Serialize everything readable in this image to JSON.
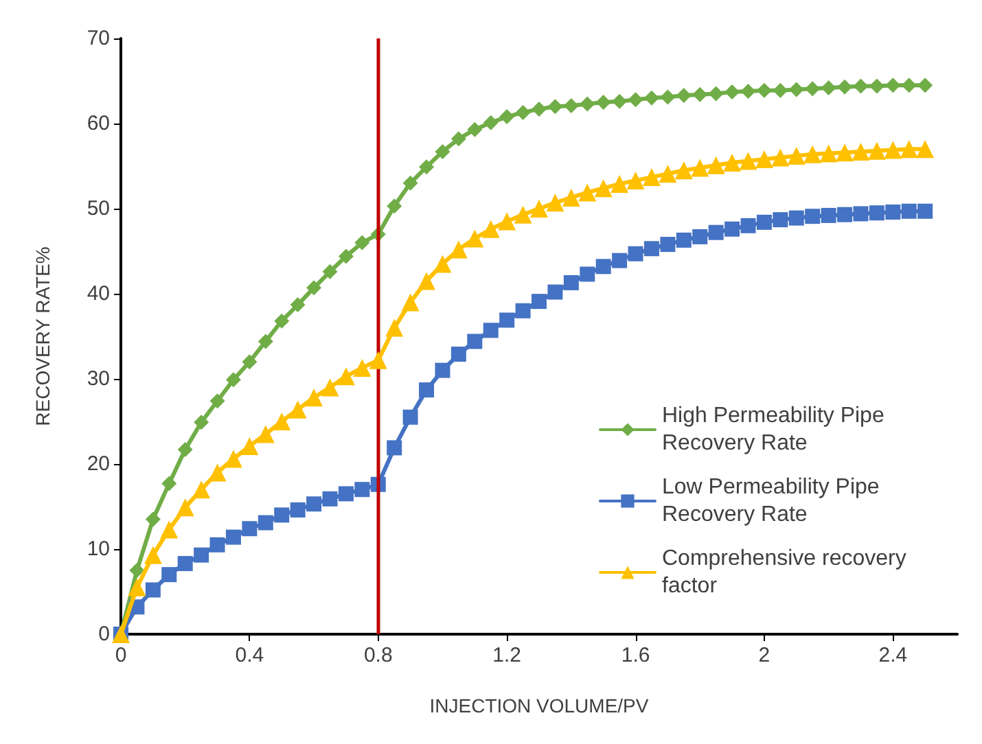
{
  "chart_data": {
    "type": "line",
    "xlabel": "INJECTION VOLUME/PV",
    "ylabel": "RECOVERY RATE%",
    "x": [
      0,
      0.05,
      0.1,
      0.15,
      0.2,
      0.25,
      0.3,
      0.35,
      0.4,
      0.45,
      0.5,
      0.55,
      0.6,
      0.65,
      0.7,
      0.75,
      0.8,
      0.85,
      0.9,
      0.95,
      1.0,
      1.05,
      1.1,
      1.15,
      1.2,
      1.25,
      1.3,
      1.35,
      1.4,
      1.45,
      1.5,
      1.55,
      1.6,
      1.65,
      1.7,
      1.75,
      1.8,
      1.85,
      1.9,
      1.95,
      2.0,
      2.05,
      2.1,
      2.15,
      2.2,
      2.25,
      2.3,
      2.35,
      2.4,
      2.45,
      2.5
    ],
    "series": [
      {
        "name": "High Permeability Pipe Recovery Rate",
        "color": "#70ad47",
        "marker": "diamond",
        "values": [
          0,
          7.5,
          13.5,
          17.7,
          21.7,
          24.9,
          27.4,
          29.9,
          32,
          34.4,
          36.8,
          38.7,
          40.7,
          42.6,
          44.4,
          46,
          47,
          50.3,
          53,
          54.9,
          56.7,
          58.2,
          59.3,
          60.1,
          60.8,
          61.3,
          61.7,
          62,
          62.1,
          62.3,
          62.5,
          62.6,
          62.8,
          63,
          63.1,
          63.3,
          63.4,
          63.5,
          63.7,
          63.8,
          63.9,
          63.9,
          64,
          64.1,
          64.2,
          64.3,
          64.4,
          64.4,
          64.5,
          64.5,
          64.5
        ]
      },
      {
        "name": "Low Permeability Pipe Recovery Rate",
        "color": "#4472c4",
        "marker": "square",
        "values": [
          0,
          3.2,
          5.2,
          7,
          8.3,
          9.3,
          10.5,
          11.4,
          12.4,
          13.1,
          14,
          14.6,
          15.3,
          15.9,
          16.5,
          17,
          17.6,
          21.9,
          25.5,
          28.7,
          31,
          32.9,
          34.4,
          35.7,
          36.9,
          38,
          39.1,
          40.2,
          41.3,
          42.3,
          43.2,
          43.9,
          44.7,
          45.3,
          45.8,
          46.3,
          46.7,
          47.2,
          47.6,
          48,
          48.4,
          48.7,
          48.9,
          49.1,
          49.2,
          49.3,
          49.4,
          49.5,
          49.6,
          49.7,
          49.7
        ]
      },
      {
        "name": "Comprehensive recovery factor",
        "color": "#ffc000",
        "marker": "triangle",
        "values": [
          0,
          5.5,
          9.3,
          12.3,
          14.9,
          17,
          19,
          20.6,
          22.1,
          23.5,
          25,
          26.4,
          27.8,
          29,
          30.3,
          31.3,
          32.2,
          36,
          39,
          41.5,
          43.5,
          45.2,
          46.5,
          47.6,
          48.5,
          49.3,
          50,
          50.7,
          51.3,
          51.9,
          52.4,
          52.9,
          53.3,
          53.7,
          54.1,
          54.5,
          54.8,
          55.1,
          55.4,
          55.6,
          55.8,
          56,
          56.2,
          56.4,
          56.5,
          56.6,
          56.7,
          56.8,
          56.9,
          57,
          57
        ]
      }
    ],
    "xlim": [
      0,
      2.6
    ],
    "xticks": [
      0,
      0.4,
      0.8,
      1.2,
      1.6,
      2,
      2.4
    ],
    "ylim": [
      0,
      70
    ],
    "yticks": [
      0,
      10,
      20,
      30,
      40,
      50,
      60,
      70
    ],
    "ref_lines": [
      {
        "axis": "x",
        "value": 0.8,
        "color": "#c00000"
      }
    ],
    "grid": false,
    "legend": "right",
    "line_style": "solid"
  }
}
